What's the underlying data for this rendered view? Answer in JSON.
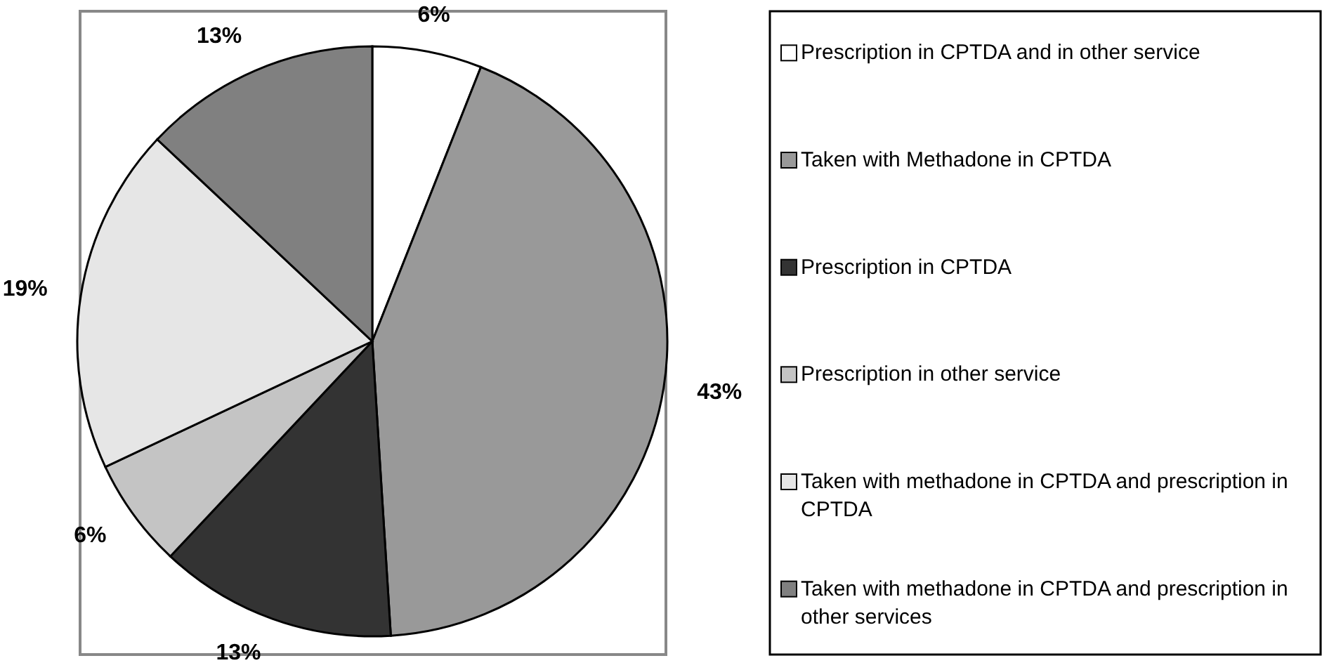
{
  "chart_data": {
    "type": "pie",
    "categories": [
      "Prescription in CPTDA and in other service",
      "Taken with Methadone in CPTDA",
      "Prescription in CPTDA",
      "Prescription in other service",
      "Taken with methadone in CPTDA and prescription in CPTDA",
      "Taken with methadone in CPTDA and prescription in other services"
    ],
    "values": [
      6,
      43,
      13,
      6,
      19,
      13
    ],
    "colors": [
      "#ffffff",
      "#999999",
      "#333333",
      "#c4c4c4",
      "#e6e6e6",
      "#808080"
    ],
    "value_labels": [
      "6%",
      "43%",
      "13%",
      "6%",
      "19%",
      "13%"
    ],
    "legend": "right"
  }
}
